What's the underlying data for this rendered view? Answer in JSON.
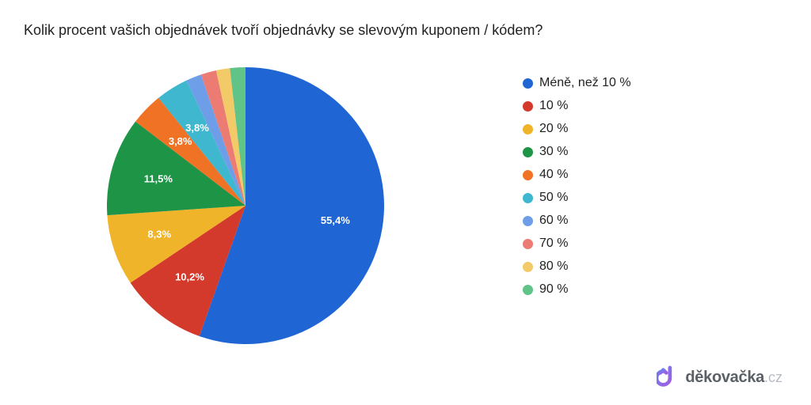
{
  "title": "Kolik procent vašich objednávek tvoří objednávky se slevovým kuponem / kódem?",
  "chart": {
    "type": "pie",
    "start_angle_deg": 90,
    "direction": "clockwise",
    "radius": 175,
    "label_radius": 115,
    "label_fontsize": 13,
    "label_color": "#ffffff",
    "label_fontweight": 700,
    "min_label_value": 3.5,
    "background_color": "#ffffff",
    "slices": [
      {
        "label": "Méně, než 10 %",
        "value": 55.4,
        "value_label": "55,4%",
        "color": "#1f66d4"
      },
      {
        "label": "10 %",
        "value": 10.2,
        "value_label": "10,2%",
        "color": "#d33a2c"
      },
      {
        "label": "20 %",
        "value": 8.3,
        "value_label": "8,3%",
        "color": "#f0b42b"
      },
      {
        "label": "30 %",
        "value": 11.5,
        "value_label": "11,5%",
        "color": "#1e9447"
      },
      {
        "label": "40 %",
        "value": 3.8,
        "value_label": "3,8%",
        "color": "#ef7225"
      },
      {
        "label": "50 %",
        "value": 3.8,
        "value_label": "3,8%",
        "color": "#3fb8cf"
      },
      {
        "label": "60 %",
        "value": 1.8,
        "value_label": "",
        "color": "#6f9ee8"
      },
      {
        "label": "70 %",
        "value": 1.8,
        "value_label": "",
        "color": "#eb7b73"
      },
      {
        "label": "80 %",
        "value": 1.6,
        "value_label": "",
        "color": "#f2cb68"
      },
      {
        "label": "90 %",
        "value": 1.8,
        "value_label": "",
        "color": "#60c387"
      }
    ]
  },
  "legend": {
    "item_fontsize": 16,
    "item_color": "#222222",
    "dot_size": 13,
    "gap": 11
  },
  "brand": {
    "name": "děkovačka",
    "suffix": ".cz",
    "name_color": "#5b5f66",
    "suffix_color": "#b8bcc2",
    "logo_color_a": "#6a7ff0",
    "logo_color_b": "#a05fe0"
  }
}
